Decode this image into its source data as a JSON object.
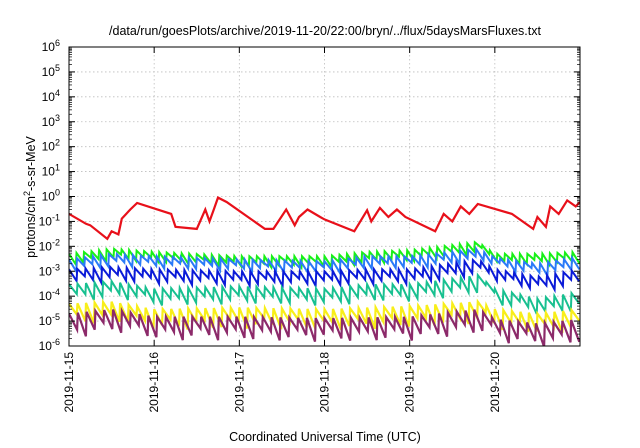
{
  "chart_data": {
    "type": "line",
    "title": "/data/run/goesPlots/archive/2019-11-20/22:00/bryn/../flux/5daysMarsFluxes.txt",
    "xlabel": "Coordinated Universal Time (UTC)",
    "ylabel_parts": {
      "base": "protons/cm",
      "sup": "2",
      "rest": "-s-sr-MeV"
    },
    "yscale": "log",
    "ylim_exp": [
      -6,
      6
    ],
    "xlim": [
      "2019-11-15",
      "2019-11-21"
    ],
    "x_ticks": [
      "2019-11-15",
      "2019-11-16",
      "2019-11-17",
      "2019-11-18",
      "2019-11-19",
      "2019-11-20"
    ],
    "y_ticks": [
      {
        "base": "10",
        "exp": "-6"
      },
      {
        "base": "10",
        "exp": "-5"
      },
      {
        "base": "10",
        "exp": "-4"
      },
      {
        "base": "10",
        "exp": "-3"
      },
      {
        "base": "10",
        "exp": "-2"
      },
      {
        "base": "10",
        "exp": "-1"
      },
      {
        "base": "10",
        "exp": "0"
      },
      {
        "base": "10",
        "exp": "1"
      },
      {
        "base": "10",
        "exp": "2"
      },
      {
        "base": "10",
        "exp": "3"
      },
      {
        "base": "10",
        "exp": "4"
      },
      {
        "base": "10",
        "exp": "5"
      },
      {
        "base": "10",
        "exp": "6"
      }
    ],
    "grid": true,
    "series": [
      {
        "color": "#e8101a",
        "width": 2.2,
        "x": [
          0,
          0.2,
          0.25,
          0.45,
          0.5,
          0.58,
          0.62,
          0.72,
          0.8,
          1.2,
          1.25,
          1.5,
          1.6,
          1.65,
          1.7,
          1.75,
          1.85,
          2.3,
          2.4,
          2.55,
          2.65,
          2.7,
          2.8,
          2.95,
          3.0,
          3.35,
          3.5,
          3.55,
          3.65,
          3.75,
          3.85,
          3.95,
          4.3,
          4.4,
          4.5,
          4.6,
          4.7,
          4.8,
          5.2,
          5.45,
          5.5,
          5.6,
          5.65,
          5.75,
          5.85,
          5.95,
          6.0
        ],
        "y": [
          0.2,
          0.08,
          0.07,
          0.02,
          0.04,
          0.03,
          0.13,
          0.3,
          0.55,
          0.2,
          0.06,
          0.05,
          0.3,
          0.1,
          0.3,
          0.9,
          0.6,
          0.05,
          0.05,
          0.3,
          0.07,
          0.15,
          0.3,
          0.15,
          0.12,
          0.04,
          0.28,
          0.1,
          0.35,
          0.15,
          0.3,
          0.15,
          0.04,
          0.2,
          0.1,
          0.4,
          0.2,
          0.5,
          0.2,
          0.05,
          0.15,
          0.06,
          0.4,
          0.2,
          0.7,
          0.4,
          0.6
        ],
        "teeth": 0
      },
      {
        "color": "#18f018",
        "width": 2,
        "x": [
          0,
          0.5,
          1.0,
          2.0,
          3.0,
          3.5,
          4.0,
          4.8,
          5.0,
          5.5,
          6.0
        ],
        "y": [
          0.005,
          0.008,
          0.006,
          0.004,
          0.004,
          0.006,
          0.007,
          0.015,
          0.005,
          0.005,
          0.006
        ],
        "teeth": 68,
        "depth": 0.45
      },
      {
        "color": "#2a7af8",
        "width": 2,
        "x": [
          0,
          0.5,
          1.0,
          2.0,
          3.0,
          3.5,
          4.0,
          4.8,
          5.0,
          5.5,
          6.0
        ],
        "y": [
          0.003,
          0.005,
          0.004,
          0.003,
          0.0025,
          0.004,
          0.004,
          0.008,
          0.0035,
          0.002,
          0.004
        ],
        "teeth": 64,
        "depth": 0.5
      },
      {
        "color": "#0a1ad8",
        "width": 2,
        "x": [
          0,
          0.5,
          1.0,
          2.0,
          3.0,
          3.5,
          4.0,
          4.8,
          5.0,
          5.5,
          6.0
        ],
        "y": [
          0.0012,
          0.0015,
          0.0012,
          0.001,
          0.001,
          0.0012,
          0.0012,
          0.003,
          0.0012,
          0.0006,
          0.0012
        ],
        "teeth": 62,
        "depth": 0.6
      },
      {
        "color": "#18c090",
        "width": 2,
        "x": [
          0,
          0.5,
          1.0,
          2.0,
          3.0,
          3.5,
          4.0,
          4.8,
          5.0,
          5.5,
          6.0
        ],
        "y": [
          0.0003,
          0.0004,
          0.0002,
          0.00025,
          0.0002,
          0.0003,
          0.0003,
          0.0007,
          0.0002,
          8e-05,
          0.00015
        ],
        "teeth": 60,
        "depth": 0.7
      },
      {
        "color": "#f8ee1a",
        "width": 2.2,
        "x": [
          0,
          0.5,
          1.0,
          2.0,
          3.0,
          4.0,
          4.8,
          5.0,
          5.5,
          6.0
        ],
        "y": [
          5e-05,
          6e-05,
          3e-05,
          3.5e-05,
          3e-05,
          4e-05,
          6e-05,
          3e-05,
          2e-05,
          3e-05
        ],
        "teeth": 60,
        "depth": 0.85
      },
      {
        "color": "#8c2a6a",
        "width": 2.2,
        "x": [
          0,
          0.5,
          1.0,
          2.0,
          3.0,
          4.0,
          4.8,
          5.0,
          5.5,
          6.0
        ],
        "y": [
          2e-05,
          3e-05,
          1.5e-05,
          1.5e-05,
          1.3e-05,
          1.5e-05,
          3e-05,
          1.2e-05,
          8e-06,
          1.2e-05
        ],
        "teeth": 58,
        "depth": 0.95
      }
    ]
  }
}
